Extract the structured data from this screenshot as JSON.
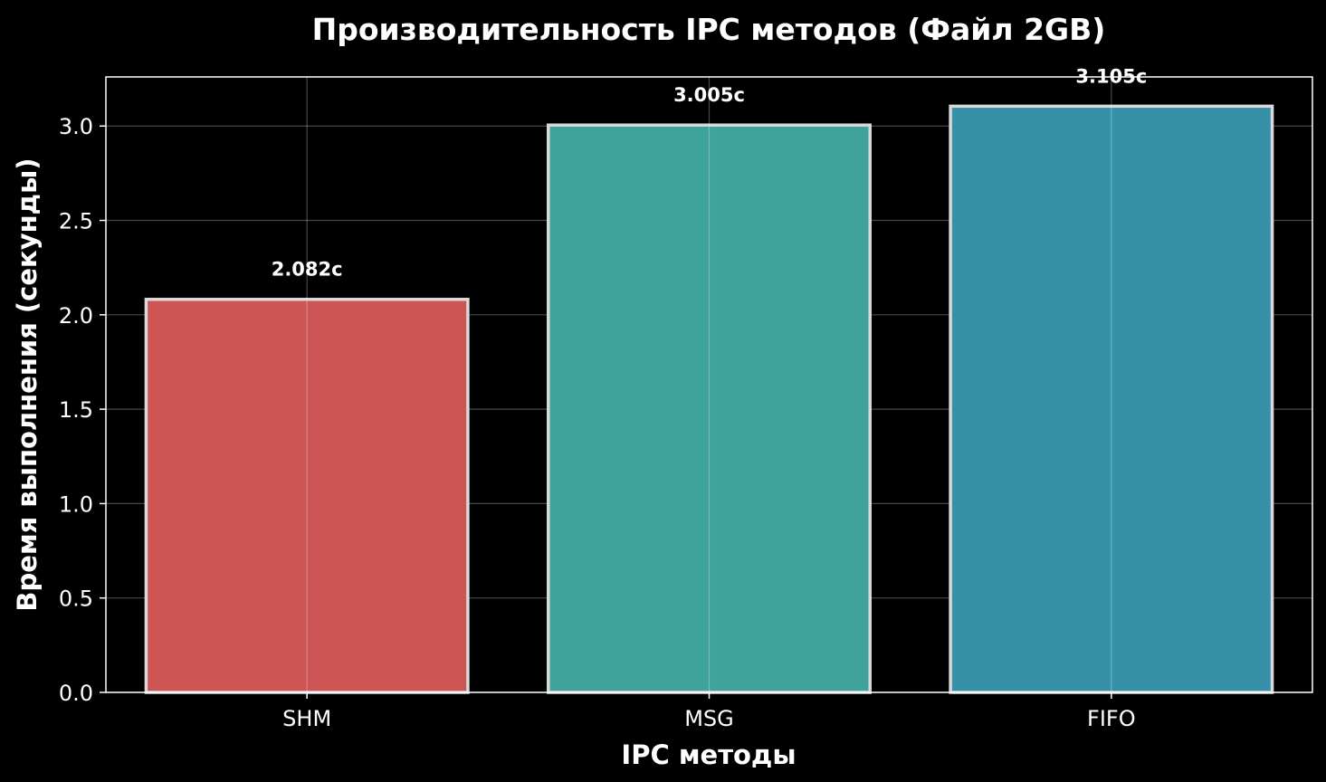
{
  "chart_data": {
    "type": "bar",
    "title": "Производительность IPC методов (Файл 2GB)",
    "xlabel": "IPC методы",
    "ylabel": "Время выполнения (секунды)",
    "categories": [
      "SHM",
      "MSG",
      "FIFO"
    ],
    "values": [
      2.082,
      3.005,
      3.105
    ],
    "value_labels": [
      "2.082с",
      "3.005с",
      "3.105с"
    ],
    "ylim": [
      0,
      3.26
    ],
    "yticks": [
      0.0,
      0.5,
      1.0,
      1.5,
      2.0,
      2.5,
      3.0
    ],
    "ytick_labels": [
      "0.0",
      "0.5",
      "1.0",
      "1.5",
      "2.0",
      "2.5",
      "3.0"
    ],
    "grid": true,
    "colors": [
      "#cd5555",
      "#40a29d",
      "#3690a8"
    ],
    "bar_edge_color": "#d9d9d9",
    "background": "#000000"
  }
}
